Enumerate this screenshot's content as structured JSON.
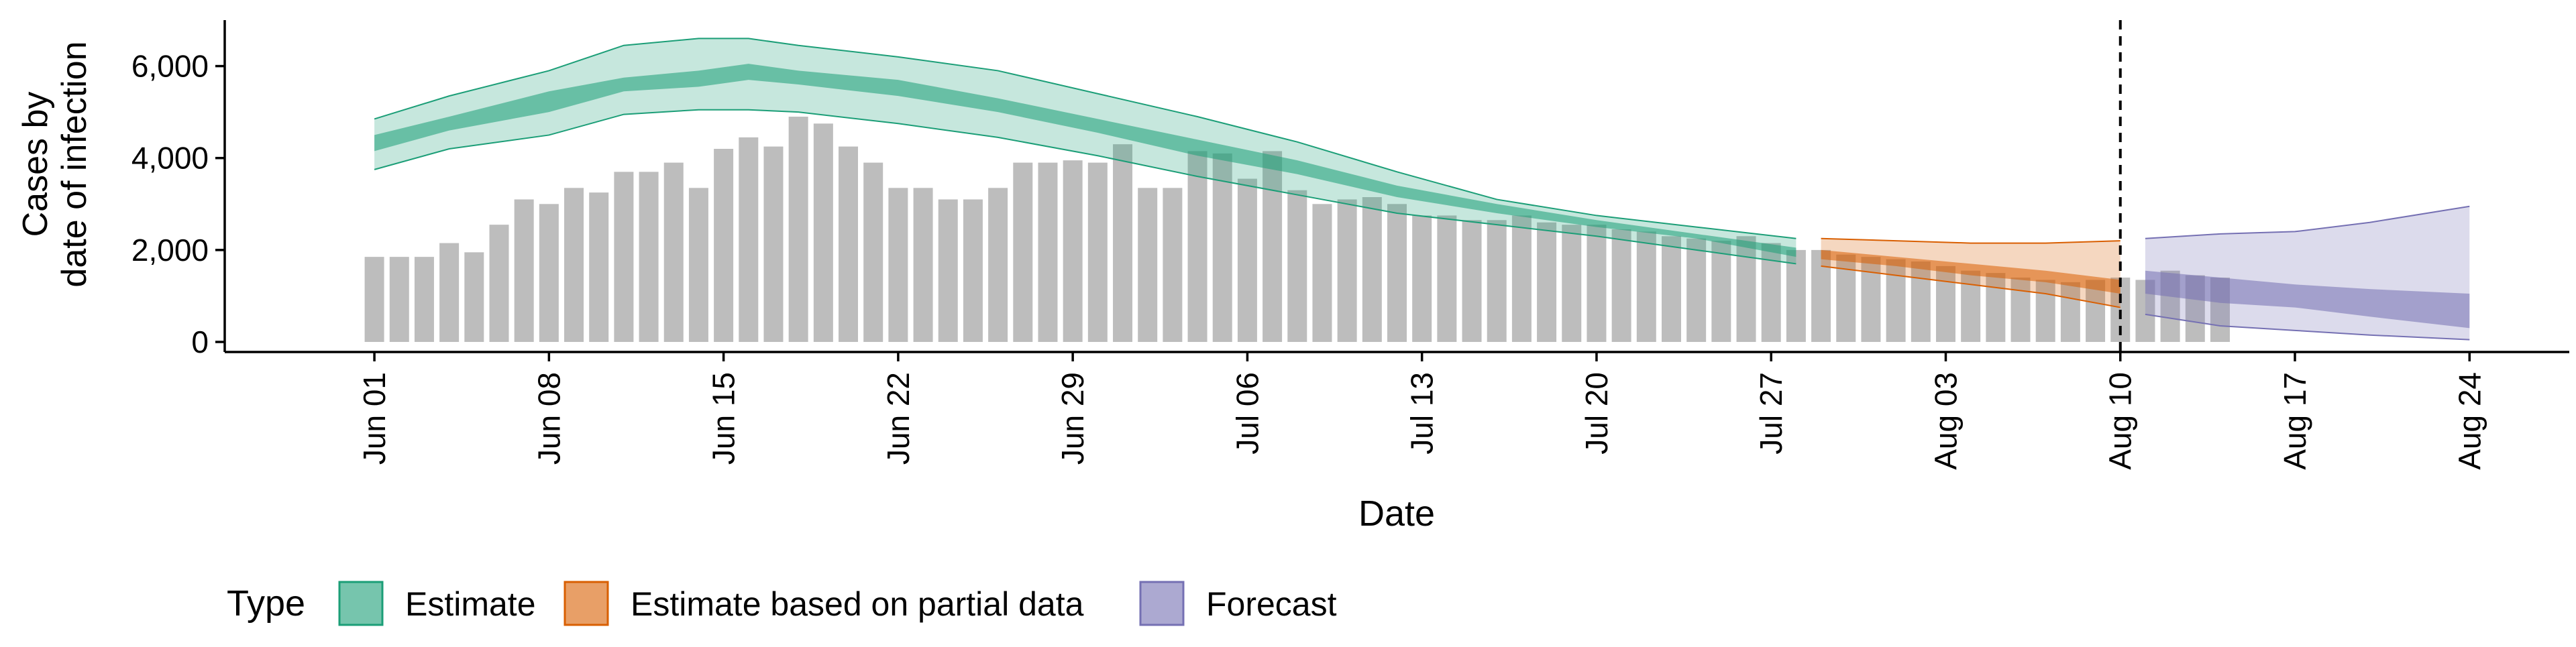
{
  "chart_data": {
    "type": "bar",
    "title": "",
    "xlabel": "Date",
    "ylabel_lines": [
      "Cases by",
      "date of infection"
    ],
    "ylim": [
      0,
      7000
    ],
    "y_ticks": [
      {
        "value": 0,
        "label": "0"
      },
      {
        "value": 2000,
        "label": "2,000"
      },
      {
        "value": 4000,
        "label": "4,000"
      },
      {
        "value": 6000,
        "label": "6,000"
      }
    ],
    "x_range": [
      "2020-05-26",
      "2020-08-28"
    ],
    "x_ticks": [
      {
        "date": "2020-06-01",
        "label": "Jun 01"
      },
      {
        "date": "2020-06-08",
        "label": "Jun 08"
      },
      {
        "date": "2020-06-15",
        "label": "Jun 15"
      },
      {
        "date": "2020-06-22",
        "label": "Jun 22"
      },
      {
        "date": "2020-06-29",
        "label": "Jun 29"
      },
      {
        "date": "2020-07-06",
        "label": "Jul 06"
      },
      {
        "date": "2020-07-13",
        "label": "Jul 13"
      },
      {
        "date": "2020-07-20",
        "label": "Jul 20"
      },
      {
        "date": "2020-07-27",
        "label": "Jul 27"
      },
      {
        "date": "2020-08-03",
        "label": "Aug 03"
      },
      {
        "date": "2020-08-10",
        "label": "Aug 10"
      },
      {
        "date": "2020-08-17",
        "label": "Aug 17"
      },
      {
        "date": "2020-08-24",
        "label": "Aug 24"
      }
    ],
    "vline_date": "2020-08-10",
    "grid": false,
    "legend_position": "bottom-left",
    "legend_title": "Type",
    "legend": [
      {
        "label": "Estimate",
        "fill": "#1b9e77",
        "stroke": "#1b9e77"
      },
      {
        "label": "Estimate based on partial data",
        "fill": "#d95f02",
        "stroke": "#d95f02"
      },
      {
        "label": "Forecast",
        "fill": "#7570b3",
        "stroke": "#7570b3"
      }
    ],
    "colors": {
      "bars": "#bdbdbd",
      "estimate": "#1b9e77",
      "partial": "#d95f02",
      "forecast": "#7570b3",
      "axis": "#000000"
    },
    "reported_cases": {
      "start_date": "2020-06-01",
      "values": [
        1850,
        1850,
        1850,
        2150,
        1950,
        2550,
        3100,
        3000,
        3350,
        3250,
        3700,
        3700,
        3900,
        3350,
        4200,
        4450,
        4250,
        4900,
        4750,
        4250,
        3900,
        3350,
        3350,
        3100,
        3100,
        3350,
        3900,
        3900,
        3950,
        3900,
        4300,
        3350,
        3350,
        4150,
        4100,
        3550,
        4150,
        3300,
        3000,
        3100,
        3150,
        3000,
        2750,
        2750,
        2650,
        2650,
        2750,
        2600,
        2550,
        2550,
        2450,
        2400,
        2300,
        2250,
        2200,
        2300,
        2150,
        2000,
        2000,
        1900,
        1850,
        1800,
        1750,
        1650,
        1550,
        1500,
        1400,
        1350,
        1300,
        1350,
        1400,
        1350,
        1550,
        1450,
        1400
      ]
    },
    "bands": [
      {
        "type": "Estimate",
        "dates": [
          "2020-06-01",
          "2020-06-04",
          "2020-06-08",
          "2020-06-11",
          "2020-06-14",
          "2020-06-16",
          "2020-06-18",
          "2020-06-22",
          "2020-06-26",
          "2020-06-30",
          "2020-07-04",
          "2020-07-08",
          "2020-07-12",
          "2020-07-16",
          "2020-07-20",
          "2020-07-24",
          "2020-07-28"
        ],
        "lower_90": [
          3750,
          4200,
          4500,
          4950,
          5050,
          5050,
          5000,
          4750,
          4450,
          4050,
          3600,
          3200,
          2800,
          2550,
          2300,
          2000,
          1700
        ],
        "upper_90": [
          4850,
          5350,
          5900,
          6450,
          6600,
          6600,
          6450,
          6200,
          5900,
          5400,
          4900,
          4350,
          3700,
          3100,
          2750,
          2500,
          2250
        ],
        "lower_50": [
          4150,
          4600,
          5000,
          5450,
          5550,
          5700,
          5600,
          5350,
          5000,
          4550,
          4050,
          3650,
          3150,
          2800,
          2500,
          2250,
          1850
        ],
        "upper_50": [
          4500,
          4900,
          5450,
          5750,
          5900,
          6050,
          5900,
          5700,
          5300,
          4850,
          4400,
          3950,
          3400,
          3000,
          2650,
          2350,
          2050
        ]
      },
      {
        "type": "Estimate based on partial data",
        "dates": [
          "2020-07-29",
          "2020-08-01",
          "2020-08-04",
          "2020-08-07",
          "2020-08-10"
        ],
        "lower_90": [
          1650,
          1450,
          1250,
          1050,
          750
        ],
        "upper_90": [
          2250,
          2200,
          2150,
          2150,
          2200
        ],
        "lower_50": [
          1800,
          1650,
          1450,
          1300,
          1050
        ],
        "upper_50": [
          2000,
          1850,
          1700,
          1550,
          1350
        ]
      },
      {
        "type": "Forecast",
        "dates": [
          "2020-08-11",
          "2020-08-14",
          "2020-08-17",
          "2020-08-20",
          "2020-08-24"
        ],
        "lower_90": [
          600,
          350,
          250,
          150,
          50
        ],
        "upper_90": [
          2250,
          2350,
          2400,
          2600,
          2950
        ],
        "lower_50": [
          1050,
          850,
          750,
          550,
          300
        ],
        "upper_50": [
          1550,
          1400,
          1250,
          1150,
          1050
        ]
      }
    ]
  }
}
